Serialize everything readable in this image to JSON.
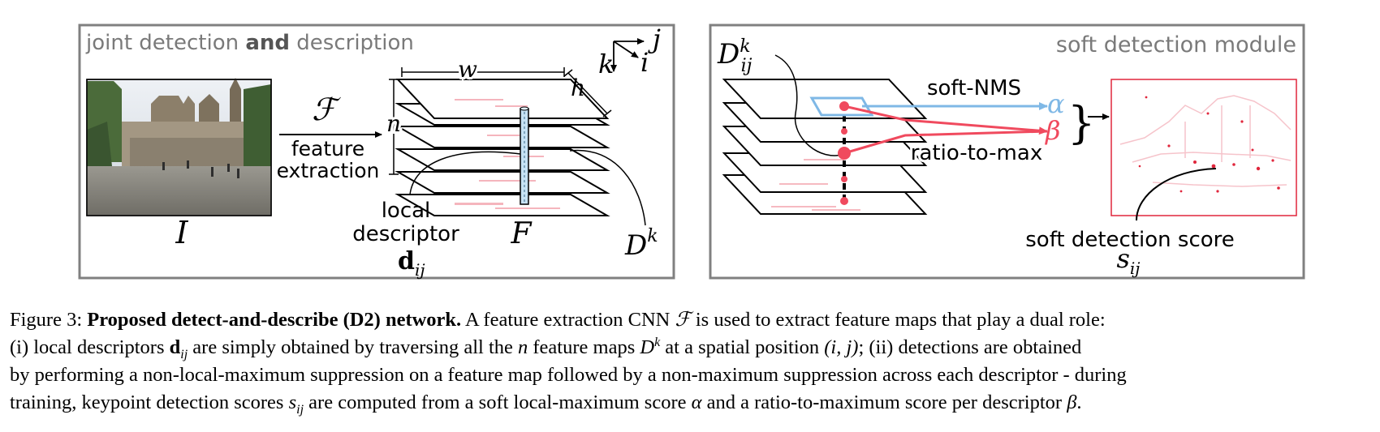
{
  "left_panel": {
    "title_pre": "joint detection ",
    "title_bold": "and",
    "title_post": " description",
    "image_label": "I",
    "f_label": "ℱ",
    "feature_extraction_line1": "feature",
    "feature_extraction_line2": "extraction",
    "dim_w": "w",
    "dim_h": "h",
    "dim_n": "n",
    "axes_k": "k",
    "axes_i": "i",
    "axes_j": "j",
    "local_descriptor_line1": "local",
    "local_descriptor_line2": "descriptor",
    "dij_base": "d",
    "dij_sub": "ij",
    "F_label": "F",
    "Dk_base": "D",
    "Dk_sup": "k"
  },
  "right_panel": {
    "title": "soft detection module",
    "Dijk_base": "D",
    "Dijk_sup": "k",
    "Dijk_sub": "ij",
    "soft_nms": "soft-NMS",
    "ratio_to_max": "ratio-to-max",
    "alpha": "α",
    "beta": "β",
    "brace": "}",
    "score_label": "soft detection score",
    "sij_base": "s",
    "sij_sub": "ij"
  },
  "colors": {
    "frame": "#808080",
    "soft_nms_blue": "#7fb8e6",
    "ratio_red": "#f04a5e",
    "heat_red": "#e0263c"
  },
  "caption": {
    "fig_label": "Figure 3: ",
    "bold_title": "Proposed detect-and-describe (D2) network.",
    "l1_a": " A feature extraction CNN ",
    "l1_F": "ℱ",
    "l1_b": " is used to extract feature maps that play a dual role:",
    "l2_a": "(i) local descriptors ",
    "l2_d": "d",
    "l2_dsub": "ij",
    "l2_b": " are simply obtained by traversing all the ",
    "l2_n": "n",
    "l2_c": " feature maps ",
    "l2_D": "D",
    "l2_Dsup": "k",
    "l2_d2": " at a spatial position ",
    "l2_ij": "(i, j)",
    "l2_e": "; (ii) detections are obtained",
    "l3": "by performing a non-local-maximum suppression on a feature map followed by a non-maximum suppression across each descriptor - during",
    "l4_a": "training, keypoint detection scores ",
    "l4_s": "s",
    "l4_ssub": "ij",
    "l4_b": " are computed from a soft local-maximum score ",
    "l4_alpha": "α",
    "l4_c": " and a ratio-to-maximum score per descriptor ",
    "l4_beta": "β",
    "l4_d": "."
  }
}
